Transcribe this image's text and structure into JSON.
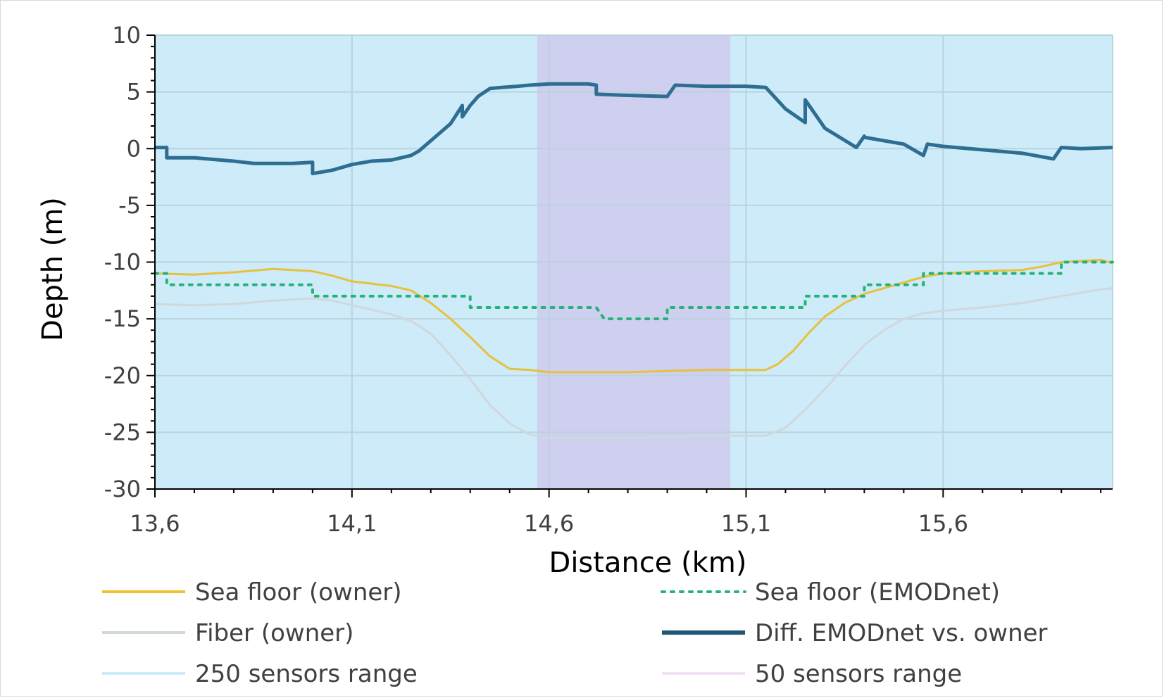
{
  "chart_data": {
    "type": "line",
    "title": "",
    "xlabel": "Distance (km)",
    "ylabel": "Depth (m)",
    "xlim": [
      13.6,
      16.03
    ],
    "ylim": [
      -30,
      10
    ],
    "x_ticks": [
      {
        "value": 13.6,
        "label": "13,6"
      },
      {
        "value": 14.1,
        "label": "14,1"
      },
      {
        "value": 14.6,
        "label": "14,6"
      },
      {
        "value": 15.1,
        "label": "15,1"
      },
      {
        "value": 15.6,
        "label": "15,6"
      }
    ],
    "y_ticks": [
      {
        "value": 10,
        "label": "10"
      },
      {
        "value": 5,
        "label": "5"
      },
      {
        "value": 0,
        "label": "0"
      },
      {
        "value": -5,
        "label": "-5"
      },
      {
        "value": -10,
        "label": "-10"
      },
      {
        "value": -15,
        "label": "-15"
      },
      {
        "value": -20,
        "label": "-20"
      },
      {
        "value": -25,
        "label": "-25"
      },
      {
        "value": -30,
        "label": "-30"
      }
    ],
    "grid": true,
    "legend_position": "bottom",
    "ranges": [
      {
        "name": "250 sensors range",
        "x": [
          13.6,
          16.03
        ],
        "color": "#cdebf8"
      },
      {
        "name": "50 sensors range",
        "x": [
          14.57,
          15.06
        ],
        "color": "#cfcff0"
      }
    ],
    "series": [
      {
        "name": "Sea floor (owner)",
        "style": "solid",
        "color": "#e8c13c",
        "width": 3,
        "x": [
          13.6,
          13.7,
          13.8,
          13.9,
          13.95,
          14.0,
          14.05,
          14.1,
          14.15,
          14.2,
          14.25,
          14.3,
          14.35,
          14.4,
          14.45,
          14.5,
          14.55,
          14.6,
          14.65,
          14.7,
          14.8,
          14.9,
          15.0,
          15.1,
          15.15,
          15.18,
          15.22,
          15.26,
          15.3,
          15.35,
          15.4,
          15.45,
          15.5,
          15.55,
          15.6,
          15.65,
          15.7,
          15.8,
          15.85,
          15.9,
          16.0,
          16.03
        ],
        "y": [
          -11.0,
          -11.1,
          -10.9,
          -10.6,
          -10.7,
          -10.8,
          -11.2,
          -11.7,
          -11.9,
          -12.1,
          -12.5,
          -13.6,
          -15.0,
          -16.6,
          -18.3,
          -19.4,
          -19.5,
          -19.7,
          -19.7,
          -19.7,
          -19.7,
          -19.6,
          -19.5,
          -19.5,
          -19.5,
          -19.0,
          -17.8,
          -16.2,
          -14.8,
          -13.6,
          -12.8,
          -12.3,
          -11.8,
          -11.3,
          -11.0,
          -10.9,
          -10.8,
          -10.7,
          -10.4,
          -10.0,
          -9.8,
          -10.1
        ]
      },
      {
        "name": "Sea floor (EMODnet)",
        "style": "dotted",
        "color": "#27b27a",
        "width": 4,
        "x": [
          13.6,
          13.63,
          13.63,
          14.0,
          14.0,
          14.3,
          14.3,
          14.3,
          14.4,
          14.4,
          14.42,
          14.72,
          14.72,
          14.74,
          14.9,
          14.9,
          14.92,
          15.25,
          15.25,
          15.27,
          15.4,
          15.4,
          15.42,
          15.55,
          15.55,
          15.57,
          15.9,
          15.9,
          15.92,
          16.03
        ],
        "y": [
          -11,
          -11,
          -12,
          -12,
          -13,
          -13,
          -13,
          -13,
          -13,
          -14,
          -14,
          -14,
          -14,
          -15,
          -15,
          -14,
          -14,
          -14,
          -13,
          -13,
          -13,
          -12,
          -12,
          -12,
          -11,
          -11,
          -11,
          -10,
          -10,
          -10
        ]
      },
      {
        "name": "Fiber (owner)",
        "style": "solid",
        "color": "#d0d8dc",
        "width": 3,
        "x": [
          13.6,
          13.7,
          13.8,
          13.9,
          14.0,
          14.05,
          14.1,
          14.15,
          14.2,
          14.25,
          14.3,
          14.35,
          14.4,
          14.45,
          14.5,
          14.55,
          14.6,
          14.7,
          14.8,
          14.9,
          15.0,
          15.1,
          15.15,
          15.2,
          15.25,
          15.3,
          15.35,
          15.4,
          15.45,
          15.5,
          15.55,
          15.6,
          15.7,
          15.8,
          15.9,
          16.0,
          16.03
        ],
        "y": [
          -13.7,
          -13.8,
          -13.7,
          -13.4,
          -13.2,
          -13.4,
          -13.8,
          -14.2,
          -14.6,
          -15.2,
          -16.3,
          -18.2,
          -20.3,
          -22.6,
          -24.2,
          -25.2,
          -25.5,
          -25.5,
          -25.5,
          -25.4,
          -25.3,
          -25.3,
          -25.3,
          -24.6,
          -23.0,
          -21.2,
          -19.2,
          -17.3,
          -16.0,
          -15.0,
          -14.5,
          -14.3,
          -14.0,
          -13.6,
          -13.0,
          -12.4,
          -12.3
        ]
      },
      {
        "name": "Diff. EMODnet vs. owner",
        "style": "solid",
        "color": "#2e6e92",
        "width": 5,
        "x": [
          13.6,
          13.63,
          13.63,
          13.7,
          13.8,
          13.85,
          13.9,
          13.95,
          14.0,
          14.0,
          14.05,
          14.1,
          14.15,
          14.2,
          14.25,
          14.27,
          14.3,
          14.35,
          14.38,
          14.38,
          14.4,
          14.42,
          14.45,
          14.48,
          14.52,
          14.55,
          14.6,
          14.7,
          14.72,
          14.72,
          14.8,
          14.9,
          14.9,
          14.92,
          15.0,
          15.1,
          15.15,
          15.2,
          15.25,
          15.25,
          15.3,
          15.38,
          15.4,
          15.4,
          15.5,
          15.55,
          15.56,
          15.56,
          15.6,
          15.7,
          15.8,
          15.88,
          15.9,
          15.9,
          15.95,
          16.03
        ],
        "y": [
          0.1,
          0.1,
          -0.8,
          -0.8,
          -1.1,
          -1.3,
          -1.3,
          -1.3,
          -1.2,
          -2.2,
          -1.9,
          -1.4,
          -1.1,
          -1.0,
          -0.6,
          -0.2,
          0.7,
          2.2,
          3.8,
          2.8,
          3.8,
          4.6,
          5.3,
          5.4,
          5.5,
          5.6,
          5.7,
          5.7,
          5.6,
          4.8,
          4.7,
          4.6,
          4.6,
          5.6,
          5.5,
          5.5,
          5.4,
          3.5,
          2.3,
          4.3,
          1.8,
          0.1,
          1.1,
          1.0,
          0.4,
          -0.6,
          0.4,
          0.4,
          0.2,
          -0.1,
          -0.4,
          -0.9,
          0.1,
          0.1,
          0.0,
          0.1
        ]
      }
    ],
    "legend": [
      {
        "label": "Sea floor (owner)",
        "color": "#f0c030",
        "style": "solid"
      },
      {
        "label": "Sea floor (EMODnet)",
        "color": "#27b27a",
        "style": "dotted"
      },
      {
        "label": "Fiber (owner)",
        "color": "#d0d8dc",
        "style": "solid"
      },
      {
        "label": "Diff. EMODnet vs. owner",
        "color": "#1f5876",
        "style": "solid"
      },
      {
        "label": "250 sensors range",
        "color": "#cdebf8",
        "style": "solid"
      },
      {
        "label": "50 sensors range",
        "color": "#f2e0f5",
        "style": "solid"
      }
    ]
  }
}
